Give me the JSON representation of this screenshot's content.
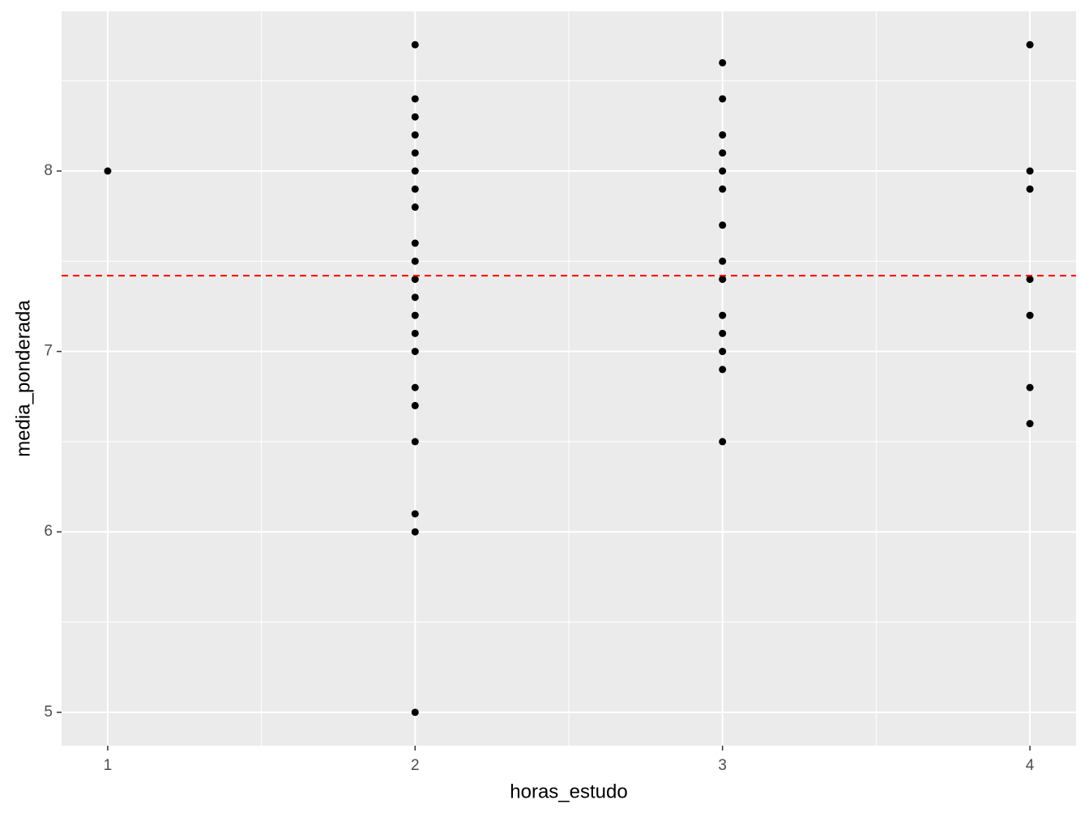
{
  "chart_data": {
    "type": "scatter",
    "x_label": "horas_estudo",
    "y_label": "media_ponderada",
    "x": [
      1,
      2,
      2,
      2,
      2,
      2,
      2,
      2,
      2,
      2,
      2,
      2,
      2,
      2,
      2,
      2,
      2,
      2,
      2,
      2,
      2,
      2,
      3,
      3,
      3,
      3,
      3,
      3,
      3,
      3,
      3,
      3,
      3,
      3,
      3,
      3,
      4,
      4,
      4,
      4,
      4,
      4,
      4
    ],
    "y": [
      8.0,
      8.7,
      8.4,
      8.3,
      8.2,
      8.1,
      8.0,
      7.9,
      7.8,
      7.6,
      7.5,
      7.4,
      7.3,
      7.2,
      7.1,
      7.0,
      6.8,
      6.7,
      6.5,
      6.1,
      6.0,
      5.0,
      8.6,
      8.4,
      8.2,
      8.1,
      8.0,
      7.9,
      7.7,
      7.5,
      7.4,
      7.2,
      7.1,
      7.0,
      6.9,
      6.5,
      8.7,
      8.0,
      7.9,
      7.4,
      7.2,
      6.8,
      6.6
    ],
    "color": "#000000",
    "xlim": [
      0.85,
      4.15
    ],
    "ylim": [
      4.815,
      8.885
    ],
    "xticks": [
      1,
      2,
      3,
      4
    ],
    "yticks": [
      5,
      6,
      7,
      8
    ],
    "xminor": [
      1.5,
      2.5,
      3.5
    ],
    "yminor": [
      5.5,
      6.5,
      7.5,
      8.5
    ],
    "grid": true,
    "hline": {
      "value": 7.42,
      "color": "#ff0000",
      "dashed": true
    }
  }
}
